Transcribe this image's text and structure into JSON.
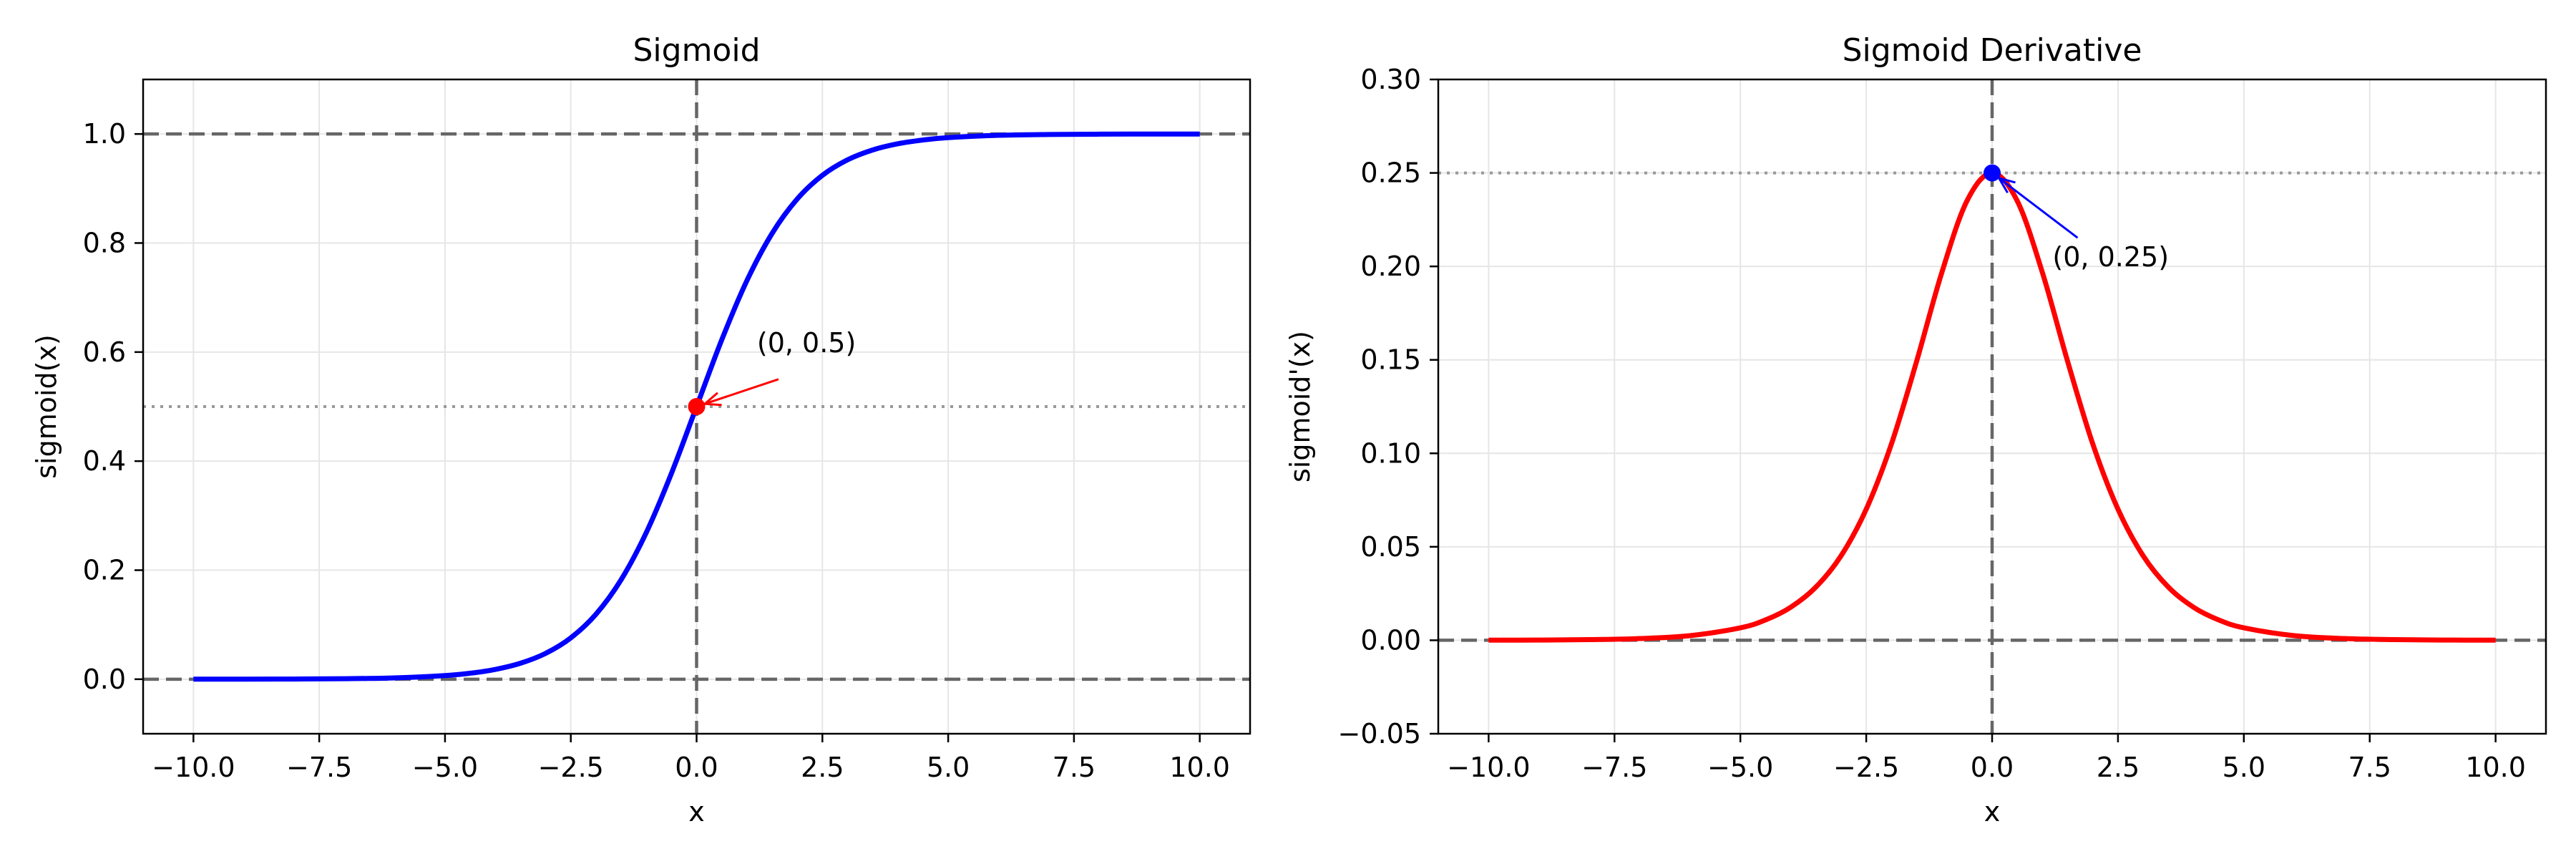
{
  "chart_data": [
    {
      "type": "line",
      "title": "Sigmoid",
      "xlabel": "x",
      "ylabel": "sigmoid(x)",
      "xlim": [
        -11,
        11
      ],
      "ylim": [
        -0.1,
        1.1
      ],
      "x_ticks": [
        -10.0,
        -7.5,
        -5.0,
        -2.5,
        0.0,
        2.5,
        5.0,
        7.5,
        10.0
      ],
      "x_tick_labels": [
        "−10.0",
        "−7.5",
        "−5.0",
        "−2.5",
        "0.0",
        "2.5",
        "5.0",
        "7.5",
        "10.0"
      ],
      "y_ticks": [
        0.0,
        0.2,
        0.4,
        0.6,
        0.8,
        1.0
      ],
      "y_tick_labels": [
        "0.0",
        "0.2",
        "0.4",
        "0.6",
        "0.8",
        "1.0"
      ],
      "grid": true,
      "series": [
        {
          "color": "#0000ff",
          "x": [
            -10,
            -9,
            -8,
            -7,
            -6,
            -5,
            -4.5,
            -4,
            -3.5,
            -3,
            -2.5,
            -2,
            -1.5,
            -1,
            -0.5,
            0,
            0.5,
            1,
            1.5,
            2,
            2.5,
            3,
            3.5,
            4,
            4.5,
            5,
            6,
            7,
            8,
            9,
            10
          ],
          "y": [
            5e-05,
            0.00012,
            0.00034,
            0.00091,
            0.00247,
            0.00669,
            0.01099,
            0.01799,
            0.02931,
            0.04743,
            0.07586,
            0.1192,
            0.18243,
            0.26894,
            0.37754,
            0.5,
            0.62246,
            0.73106,
            0.81757,
            0.8808,
            0.92414,
            0.95257,
            0.97069,
            0.98201,
            0.98901,
            0.99331,
            0.99753,
            0.99909,
            0.99966,
            0.99988,
            0.99995
          ]
        }
      ],
      "reference_lines": [
        {
          "orientation": "horizontal",
          "value": 0,
          "style": "dashed"
        },
        {
          "orientation": "horizontal",
          "value": 1,
          "style": "dashed"
        },
        {
          "orientation": "vertical",
          "value": 0,
          "style": "dashed"
        },
        {
          "orientation": "horizontal",
          "value": 0.5,
          "style": "dotted"
        }
      ],
      "highlight_point": {
        "x": 0,
        "y": 0.5,
        "color": "#ff0000"
      },
      "annotation": {
        "text": "(0, 0.5)",
        "text_x": 1.2,
        "text_y": 0.6,
        "color": "#ff0000"
      }
    },
    {
      "type": "line",
      "title": "Sigmoid Derivative",
      "xlabel": "x",
      "ylabel": "sigmoid'(x)",
      "xlim": [
        -11,
        11
      ],
      "ylim": [
        -0.05,
        0.3
      ],
      "x_ticks": [
        -10.0,
        -7.5,
        -5.0,
        -2.5,
        0.0,
        2.5,
        5.0,
        7.5,
        10.0
      ],
      "x_tick_labels": [
        "−10.0",
        "−7.5",
        "−5.0",
        "−2.5",
        "0.0",
        "2.5",
        "5.0",
        "7.5",
        "10.0"
      ],
      "y_ticks": [
        -0.05,
        0.0,
        0.05,
        0.1,
        0.15,
        0.2,
        0.25,
        0.3
      ],
      "y_tick_labels": [
        "−0.05",
        "0.00",
        "0.05",
        "0.10",
        "0.15",
        "0.20",
        "0.25",
        "0.30"
      ],
      "grid": true,
      "series": [
        {
          "color": "#ff0000",
          "x": [
            -10,
            -9,
            -8,
            -7,
            -6,
            -5,
            -4.5,
            -4,
            -3.5,
            -3,
            -2.5,
            -2,
            -1.5,
            -1,
            -0.5,
            0,
            0.5,
            1,
            1.5,
            2,
            2.5,
            3,
            3.5,
            4,
            4.5,
            5,
            6,
            7,
            8,
            9,
            10
          ],
          "y": [
            5e-05,
            0.00012,
            0.00034,
            0.00091,
            0.00247,
            0.00665,
            0.01087,
            0.01767,
            0.02845,
            0.04518,
            0.07011,
            0.10499,
            0.14915,
            0.19661,
            0.235,
            0.25,
            0.235,
            0.19661,
            0.14915,
            0.10499,
            0.07011,
            0.04518,
            0.02845,
            0.01767,
            0.01087,
            0.00665,
            0.00247,
            0.00091,
            0.00034,
            0.00012,
            5e-05
          ]
        }
      ],
      "reference_lines": [
        {
          "orientation": "horizontal",
          "value": 0,
          "style": "dashed"
        },
        {
          "orientation": "vertical",
          "value": 0,
          "style": "dashed"
        },
        {
          "orientation": "horizontal",
          "value": 0.25,
          "style": "dotted"
        }
      ],
      "highlight_point": {
        "x": 0,
        "y": 0.25,
        "color": "#0000ff"
      },
      "annotation": {
        "text": "(0, 0.25)",
        "text_x": 1.2,
        "text_y": 0.2,
        "color": "#0000ff"
      }
    }
  ]
}
